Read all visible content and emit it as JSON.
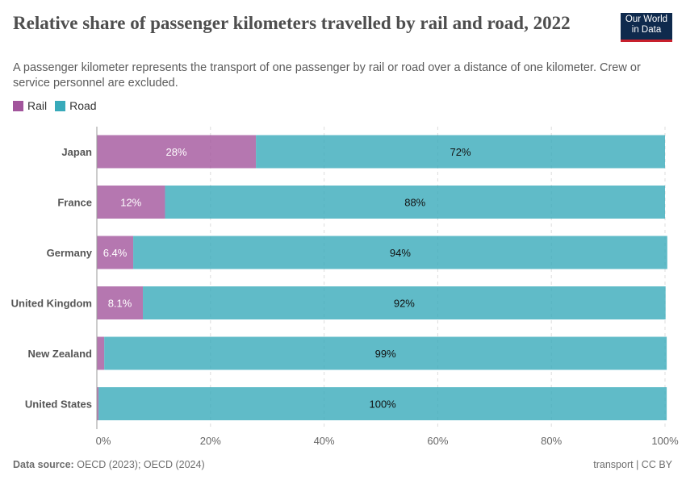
{
  "header": {
    "title": "Relative share of passenger kilometers travelled by rail and road, 2022",
    "subtitle": "A passenger kilometer represents the transport of one passenger by rail or road over a distance of one kilometer. Crew or service personnel are excluded.",
    "logo": "Our World in Data"
  },
  "footer": {
    "source_label": "Data source:",
    "source": "OECD (2023); OECD (2024)",
    "license": "transport | CC BY"
  },
  "chart_data": {
    "type": "bar",
    "orientation": "horizontal",
    "stacked": true,
    "categories": [
      "Japan",
      "France",
      "Germany",
      "United Kingdom",
      "New Zealand",
      "United States"
    ],
    "series": [
      {
        "name": "Rail",
        "color": "#a2559c",
        "values": [
          28,
          12,
          6.4,
          8.1,
          1.3,
          0.3
        ],
        "labels": [
          "28%",
          "12%",
          "6.4%",
          "8.1%",
          "",
          ""
        ]
      },
      {
        "name": "Road",
        "color": "#38aaba",
        "values": [
          72,
          88,
          94,
          92,
          99,
          100
        ],
        "labels": [
          "72%",
          "88%",
          "94%",
          "92%",
          "99%",
          "100%"
        ]
      }
    ],
    "xlim": [
      0,
      100
    ],
    "xticks": [
      "0%",
      "20%",
      "40%",
      "60%",
      "80%",
      "100%"
    ],
    "grid": "vertical dashed",
    "legend": "top-left"
  }
}
